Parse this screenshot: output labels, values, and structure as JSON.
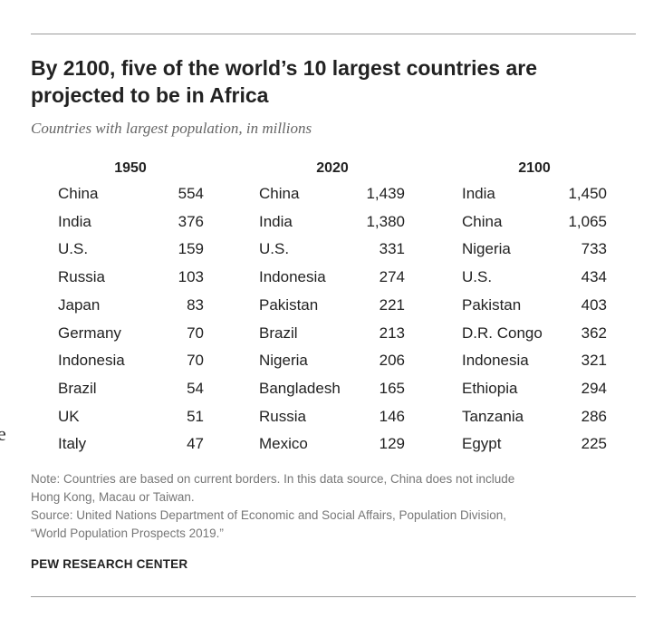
{
  "edge_fragment": "e",
  "header": {
    "title_line1": "By 2100, five of the world’s 10 largest countries are",
    "title_line2": "projected to be in Africa",
    "subtitle": "Countries with largest population, in millions"
  },
  "chart_data": {
    "type": "table",
    "title": "By 2100, five of the world’s 10 largest countries are projected to be in Africa",
    "subtitle": "Countries with largest population, in millions",
    "unit": "millions",
    "columns": [
      {
        "year": "1950",
        "rows": [
          {
            "country": "China",
            "value": "554"
          },
          {
            "country": "India",
            "value": "376"
          },
          {
            "country": "U.S.",
            "value": "159"
          },
          {
            "country": "Russia",
            "value": "103"
          },
          {
            "country": "Japan",
            "value": "83"
          },
          {
            "country": "Germany",
            "value": "70"
          },
          {
            "country": "Indonesia",
            "value": "70"
          },
          {
            "country": "Brazil",
            "value": "54"
          },
          {
            "country": "UK",
            "value": "51"
          },
          {
            "country": "Italy",
            "value": "47"
          }
        ]
      },
      {
        "year": "2020",
        "rows": [
          {
            "country": "China",
            "value": "1,439"
          },
          {
            "country": "India",
            "value": "1,380"
          },
          {
            "country": "U.S.",
            "value": "331"
          },
          {
            "country": "Indonesia",
            "value": "274"
          },
          {
            "country": "Pakistan",
            "value": "221"
          },
          {
            "country": "Brazil",
            "value": "213"
          },
          {
            "country": "Nigeria",
            "value": "206"
          },
          {
            "country": "Bangladesh",
            "value": "165"
          },
          {
            "country": "Russia",
            "value": "146"
          },
          {
            "country": "Mexico",
            "value": "129"
          }
        ]
      },
      {
        "year": "2100",
        "rows": [
          {
            "country": "India",
            "value": "1,450"
          },
          {
            "country": "China",
            "value": "1,065"
          },
          {
            "country": "Nigeria",
            "value": "733"
          },
          {
            "country": "U.S.",
            "value": "434"
          },
          {
            "country": "Pakistan",
            "value": "403"
          },
          {
            "country": "D.R. Congo",
            "value": "362"
          },
          {
            "country": "Indonesia",
            "value": "321"
          },
          {
            "country": "Ethiopia",
            "value": "294"
          },
          {
            "country": "Tanzania",
            "value": "286"
          },
          {
            "country": "Egypt",
            "value": "225"
          }
        ]
      }
    ]
  },
  "footer": {
    "note_line1": "Note: Countries are based on current borders. In this data source, China does not include",
    "note_line2": "Hong Kong, Macau or Taiwan.",
    "source_line1": "Source: United Nations Department of Economic and Social Affairs, Population Division,",
    "source_line2": "“World Population Prospects 2019.”",
    "credit": "PEW RESEARCH CENTER"
  }
}
